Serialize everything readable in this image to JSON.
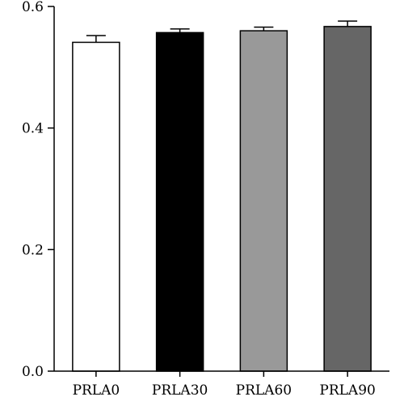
{
  "chart_data": {
    "type": "bar",
    "title": "",
    "xlabel": "",
    "ylabel": "",
    "categories": [
      "PRLA0",
      "PRLA30",
      "PRLA60",
      "PRLA90"
    ],
    "values": [
      0.541,
      0.557,
      0.56,
      0.567
    ],
    "errors": [
      0.011,
      0.006,
      0.006,
      0.009
    ],
    "bar_colors": [
      "#ffffff",
      "#000000",
      "#999999",
      "#666666"
    ],
    "ylim": [
      0,
      0.6
    ],
    "yticks": [
      0.0,
      0.2,
      0.4,
      0.6
    ],
    "ytick_labels": [
      "0.0",
      "0.2",
      "0.4",
      "0.6"
    ],
    "grid": false,
    "legend": "none"
  }
}
